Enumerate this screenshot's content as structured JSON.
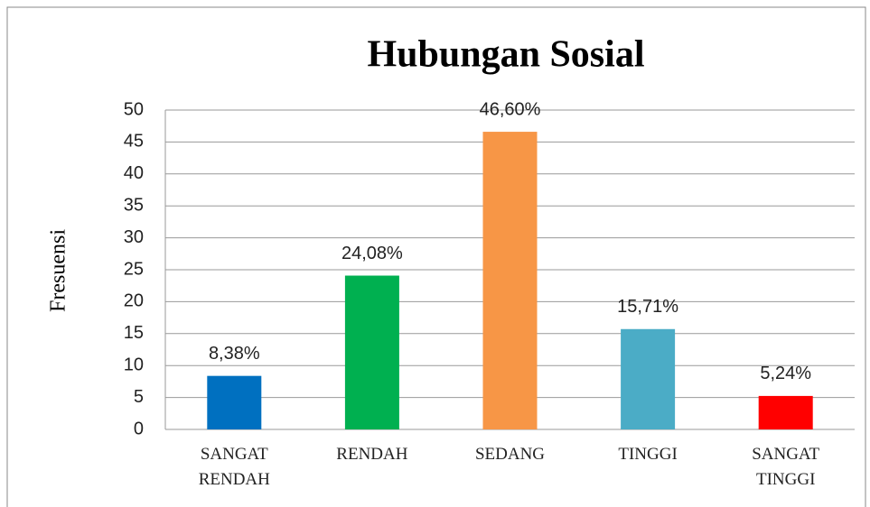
{
  "chart_data": {
    "type": "bar",
    "title": "Hubungan Sosial",
    "y_label": "Fresuensi",
    "categories": [
      "SANGAT RENDAH",
      "RENDAH",
      "SEDANG",
      "TINGGI",
      "SANGAT TINGGI"
    ],
    "values": [
      8.38,
      24.08,
      46.6,
      15.71,
      5.24
    ],
    "value_labels": [
      "8,38%",
      "24,08%",
      "46,60%",
      "15,71%",
      "5,24%"
    ],
    "colors": [
      "#0070c0",
      "#00b050",
      "#f79646",
      "#4bacc6",
      "#ff0000"
    ],
    "ylim": [
      0,
      50
    ],
    "yticks": [
      0,
      5,
      10,
      15,
      20,
      25,
      30,
      35,
      40,
      45,
      50
    ],
    "grid": true
  }
}
